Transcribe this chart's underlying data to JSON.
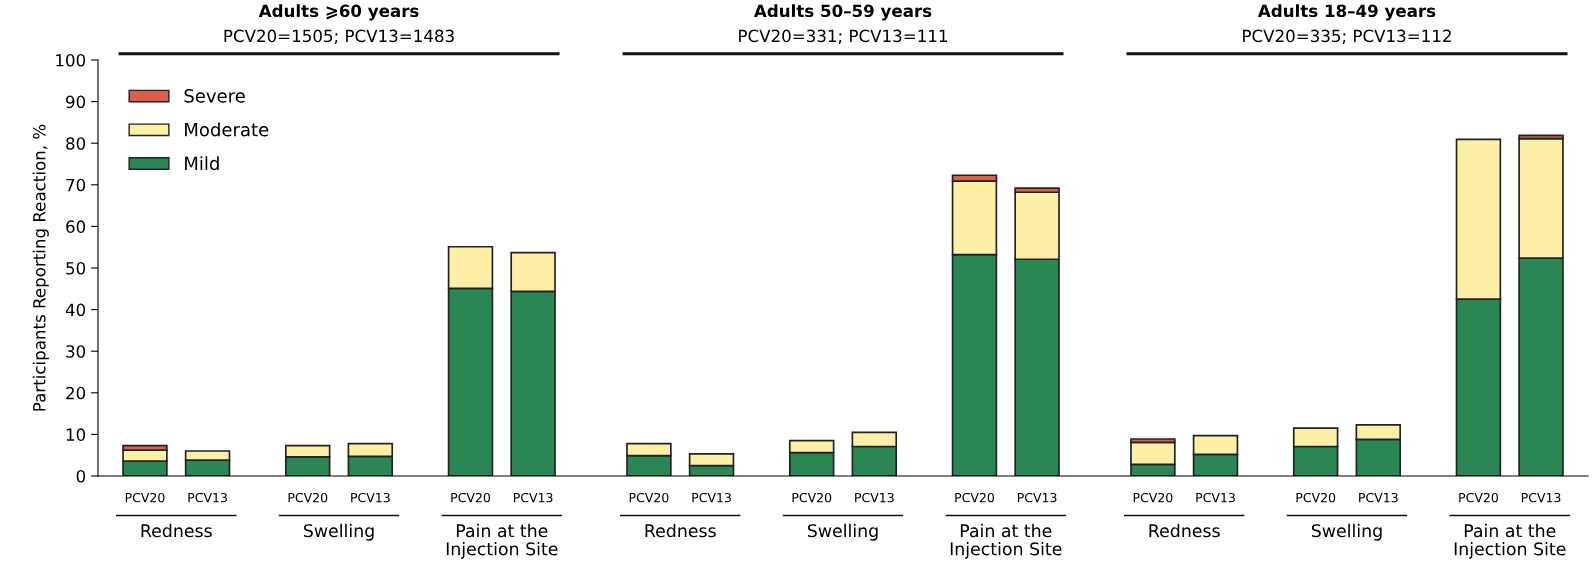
{
  "chart_data": {
    "type": "bar",
    "stacked": true,
    "ylabel": "Participants Reporting Reaction, %",
    "categories": [
      "PCV20",
      "PCV13",
      "PCV20",
      "PCV13",
      "PCV20",
      "PCV13",
      "PCV20",
      "PCV13",
      "PCV20",
      "PCV13",
      "PCV20",
      "PCV13",
      "PCV20",
      "PCV13",
      "PCV20",
      "PCV13",
      "PCV20",
      "PCV13"
    ],
    "ylim": [
      0,
      100
    ],
    "yticks": [
      0,
      10,
      20,
      30,
      40,
      50,
      60,
      70,
      80,
      90,
      100
    ],
    "legend": "top left",
    "grid": false,
    "series": [
      {
        "name": "Mild",
        "color": "#2a8653",
        "values": [
          3.6,
          3.8,
          4.6,
          4.7,
          45.1,
          44.4,
          4.9,
          2.5,
          5.6,
          7.1,
          53.2,
          52.1,
          2.8,
          5.2,
          7.1,
          8.8,
          42.5,
          52.4
        ]
      },
      {
        "name": "Moderate",
        "color": "#fdf0a6",
        "values": [
          2.6,
          2.2,
          2.7,
          3.1,
          10.0,
          9.3,
          2.9,
          2.8,
          2.9,
          3.4,
          17.7,
          16.1,
          5.3,
          4.5,
          4.4,
          3.5,
          38.4,
          28.7
        ]
      },
      {
        "name": "Severe",
        "color": "#d9604a",
        "values": [
          1.1,
          null,
          null,
          null,
          null,
          null,
          null,
          null,
          null,
          null,
          1.4,
          1.0,
          0.8,
          null,
          null,
          null,
          null,
          0.8
        ]
      }
    ],
    "annotations": [
      "Adults ⩾60 years",
      "PCV20=1505; PCV13=1483",
      "Redness",
      "Swelling",
      "Pain at the\nInjection Site",
      "Adults 50–59 years",
      "PCV20=331; PCV13=111",
      "Redness",
      "Swelling",
      "Pain at the\nInjection Site",
      "Adults 18–49 years",
      "PCV20=335; PCV13=112",
      "Redness",
      "Swelling",
      "Pain at the\nInjection Site"
    ]
  }
}
